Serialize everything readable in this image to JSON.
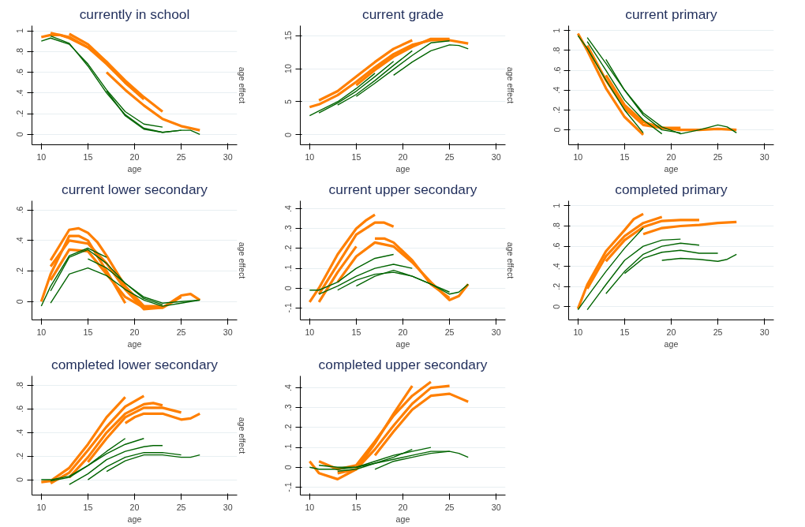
{
  "chart_data": [
    {
      "type": "line",
      "title": "currently in school",
      "xlabel": "age",
      "y2label": "age effect",
      "xlim": [
        9,
        31
      ],
      "xticks": [
        10,
        15,
        20,
        25,
        30
      ],
      "ylim": [
        -0.1,
        1.05
      ],
      "yticks": [
        {
          "value": 0,
          "label": "0"
        },
        {
          "value": 0.2,
          "label": ".2"
        },
        {
          "value": 0.4,
          "label": ".4"
        },
        {
          "value": 0.6,
          "label": ".6"
        },
        {
          "value": 0.8,
          "label": ".8"
        },
        {
          "value": 1,
          "label": "1"
        }
      ],
      "grid": "y",
      "marker": "none",
      "line_style": "solid",
      "series": [
        {
          "color": "#ff7f00",
          "x": [
            10,
            11,
            12,
            13,
            15,
            17,
            19,
            21,
            23
          ],
          "values": [
            0.94,
            0.96,
            0.96,
            0.93,
            0.84,
            0.7,
            0.52,
            0.36,
            0.22
          ]
        },
        {
          "color": "#ff7f00",
          "x": [
            11,
            13,
            15,
            17,
            19,
            21
          ],
          "values": [
            0.98,
            0.94,
            0.84,
            0.68,
            0.5,
            0.34
          ]
        },
        {
          "color": "#ff7f00",
          "x": [
            13,
            15,
            17,
            19,
            21
          ],
          "values": [
            0.97,
            0.87,
            0.7,
            0.5,
            0.35
          ]
        },
        {
          "color": "#ff7f00",
          "x": [
            17,
            19,
            21,
            23,
            25,
            27
          ],
          "values": [
            0.6,
            0.43,
            0.28,
            0.15,
            0.08,
            0.04
          ]
        },
        {
          "color": "#006400",
          "x": [
            10,
            11,
            13,
            15,
            17,
            19,
            21,
            23
          ],
          "values": [
            0.9,
            0.93,
            0.87,
            0.68,
            0.43,
            0.22,
            0.1,
            0.07
          ]
        },
        {
          "color": "#006400",
          "x": [
            11,
            13,
            15,
            17,
            19,
            21,
            23,
            25
          ],
          "values": [
            0.95,
            0.88,
            0.66,
            0.4,
            0.19,
            0.06,
            0.02,
            0.04
          ]
        },
        {
          "color": "#006400",
          "x": [
            17,
            19,
            21,
            23,
            25,
            26,
            27
          ],
          "values": [
            0.42,
            0.18,
            0.05,
            0.02,
            0.04,
            0.04,
            0.0
          ]
        }
      ]
    },
    {
      "type": "line",
      "title": "current grade",
      "xlabel": "age",
      "y2label": "age effect",
      "xlim": [
        9,
        31
      ],
      "xticks": [
        10,
        15,
        20,
        25,
        30
      ],
      "ylim": [
        -1.5,
        16.5
      ],
      "yticks": [
        0,
        5,
        10,
        15
      ],
      "grid": "y",
      "marker": "none",
      "line_style": "solid",
      "series": [
        {
          "color": "#ff7f00",
          "x": [
            10,
            11,
            13,
            15,
            17,
            19,
            21,
            23,
            25,
            27
          ],
          "values": [
            4.2,
            4.6,
            6.0,
            8.0,
            10.2,
            12.2,
            13.6,
            14.3,
            14.3,
            13.8
          ]
        },
        {
          "color": "#ff7f00",
          "x": [
            11,
            13,
            15,
            17,
            19,
            21
          ],
          "values": [
            5.2,
            6.6,
            8.8,
            11.0,
            13.0,
            14.3
          ]
        },
        {
          "color": "#ff7f00",
          "x": [
            15,
            17,
            19,
            21,
            23,
            25
          ],
          "values": [
            7.5,
            9.8,
            11.8,
            13.3,
            14.5,
            14.5
          ]
        },
        {
          "color": "#006400",
          "x": [
            10,
            11,
            13,
            15,
            17
          ],
          "values": [
            2.9,
            3.6,
            5.0,
            7.0,
            9.3
          ]
        },
        {
          "color": "#006400",
          "x": [
            11,
            13,
            15,
            17,
            19
          ],
          "values": [
            3.3,
            4.8,
            6.6,
            8.8,
            11.1
          ]
        },
        {
          "color": "#006400",
          "x": [
            13,
            15,
            17,
            19,
            21
          ],
          "values": [
            4.5,
            6.1,
            8.2,
            10.5,
            12.7
          ]
        },
        {
          "color": "#006400",
          "x": [
            15,
            17,
            19,
            21,
            23,
            25
          ],
          "values": [
            5.8,
            7.8,
            9.9,
            12.0,
            13.9,
            14.2
          ]
        },
        {
          "color": "#006400",
          "x": [
            19,
            21,
            23,
            25,
            26,
            27
          ],
          "values": [
            9.0,
            11.0,
            12.7,
            13.6,
            13.5,
            13.0
          ]
        }
      ]
    },
    {
      "type": "line",
      "title": "current primary",
      "xlabel": "age",
      "xlim": [
        9,
        31
      ],
      "xticks": [
        10,
        15,
        20,
        25,
        30
      ],
      "ylim": [
        -0.15,
        1.05
      ],
      "yticks": [
        {
          "value": 0,
          "label": "0"
        },
        {
          "value": 0.2,
          "label": ".2"
        },
        {
          "value": 0.4,
          "label": ".4"
        },
        {
          "value": 0.6,
          "label": ".6"
        },
        {
          "value": 0.8,
          "label": ".8"
        },
        {
          "value": 1,
          "label": "1"
        }
      ],
      "grid": "y",
      "marker": "none",
      "line_style": "solid",
      "series": [
        {
          "color": "#ff7f00",
          "x": [
            10,
            11,
            13,
            15,
            17
          ],
          "values": [
            0.97,
            0.8,
            0.42,
            0.13,
            -0.05
          ]
        },
        {
          "color": "#ff7f00",
          "x": [
            11,
            13,
            15,
            17,
            19,
            21
          ],
          "values": [
            0.85,
            0.5,
            0.22,
            0.05,
            0.02,
            0.02
          ]
        },
        {
          "color": "#ff7f00",
          "x": [
            13,
            15,
            17,
            19,
            21,
            23,
            25,
            27
          ],
          "values": [
            0.55,
            0.25,
            0.08,
            0.02,
            0.0,
            0.0,
            0.01,
            0.0
          ]
        },
        {
          "color": "#006400",
          "x": [
            10,
            11,
            13,
            15,
            17
          ],
          "values": [
            0.95,
            0.82,
            0.5,
            0.2,
            -0.03
          ]
        },
        {
          "color": "#006400",
          "x": [
            11,
            13,
            15,
            17,
            19
          ],
          "values": [
            0.89,
            0.6,
            0.3,
            0.1,
            -0.04
          ]
        },
        {
          "color": "#006400",
          "x": [
            11,
            13,
            15,
            17,
            19,
            21
          ],
          "values": [
            0.93,
            0.67,
            0.4,
            0.15,
            0.0,
            -0.03
          ]
        },
        {
          "color": "#006400",
          "x": [
            13,
            15,
            17,
            19,
            21,
            23,
            25,
            26,
            27
          ],
          "values": [
            0.71,
            0.4,
            0.17,
            0.03,
            -0.04,
            0.0,
            0.05,
            0.03,
            -0.03
          ]
        }
      ]
    },
    {
      "type": "line",
      "title": "current lower secondary",
      "xlabel": "age",
      "y2label": "age effect",
      "xlim": [
        9,
        31
      ],
      "xticks": [
        10,
        15,
        20,
        25,
        30
      ],
      "ylim": [
        -0.12,
        0.66
      ],
      "yticks": [
        {
          "value": 0,
          "label": "0"
        },
        {
          "value": 0.2,
          "label": ".2"
        },
        {
          "value": 0.4,
          "label": ".4"
        },
        {
          "value": 0.6,
          "label": ".6"
        }
      ],
      "grid": "y",
      "marker": "none",
      "line_style": "solid",
      "series": [
        {
          "color": "#ff7f00",
          "x": [
            10,
            11,
            13,
            14,
            15,
            17,
            19
          ],
          "values": [
            0.0,
            0.18,
            0.43,
            0.43,
            0.4,
            0.2,
            -0.01
          ]
        },
        {
          "color": "#ff7f00",
          "x": [
            11,
            13,
            14,
            15,
            16,
            17,
            19,
            21,
            23
          ],
          "values": [
            0.27,
            0.47,
            0.48,
            0.45,
            0.39,
            0.3,
            0.1,
            -0.03,
            -0.03
          ]
        },
        {
          "color": "#ff7f00",
          "x": [
            11,
            13,
            15,
            17,
            19,
            21,
            23,
            25,
            26,
            27
          ],
          "values": [
            0.23,
            0.4,
            0.38,
            0.25,
            0.08,
            -0.05,
            -0.04,
            0.04,
            0.05,
            0.01
          ]
        },
        {
          "color": "#ff7f00",
          "x": [
            11,
            13,
            15,
            17,
            19,
            21,
            23,
            25
          ],
          "values": [
            0.14,
            0.34,
            0.33,
            0.18,
            0.03,
            -0.04,
            -0.04,
            0.03
          ]
        },
        {
          "color": "#006400",
          "x": [
            10,
            11,
            13,
            15,
            17
          ],
          "values": [
            -0.03,
            0.1,
            0.3,
            0.35,
            0.29
          ]
        },
        {
          "color": "#006400",
          "x": [
            11,
            13,
            15,
            17,
            19,
            21,
            23
          ],
          "values": [
            0.07,
            0.29,
            0.34,
            0.25,
            0.12,
            0.02,
            -0.02
          ]
        },
        {
          "color": "#006400",
          "x": [
            11,
            13,
            15,
            17,
            19,
            21,
            23,
            25,
            27
          ],
          "values": [
            -0.01,
            0.18,
            0.22,
            0.17,
            0.08,
            0.01,
            -0.03,
            -0.01,
            0.01
          ]
        },
        {
          "color": "#006400",
          "x": [
            15,
            17,
            19,
            21,
            23,
            25,
            27
          ],
          "values": [
            0.28,
            0.22,
            0.12,
            0.03,
            -0.01,
            0.0,
            0.01
          ]
        }
      ]
    },
    {
      "type": "line",
      "title": "current upper secondary",
      "xlabel": "age",
      "y2label": "age effect",
      "xlim": [
        9,
        31
      ],
      "xticks": [
        10,
        15,
        20,
        25,
        30
      ],
      "ylim": [
        -0.16,
        0.44
      ],
      "yticks": [
        {
          "value": -0.1,
          "label": "-.1"
        },
        {
          "value": 0,
          "label": "0"
        },
        {
          "value": 0.1,
          "label": ".1"
        },
        {
          "value": 0.2,
          "label": ".2"
        },
        {
          "value": 0.3,
          "label": ".3"
        },
        {
          "value": 0.4,
          "label": ".4"
        }
      ],
      "grid": "y",
      "marker": "none",
      "line_style": "solid",
      "series": [
        {
          "color": "#ff7f00",
          "x": [
            10,
            11,
            13,
            15,
            16,
            17
          ],
          "values": [
            -0.07,
            0.0,
            0.17,
            0.3,
            0.34,
            0.37
          ]
        },
        {
          "color": "#ff7f00",
          "x": [
            11,
            13,
            15,
            17,
            18,
            19
          ],
          "values": [
            -0.03,
            0.12,
            0.27,
            0.33,
            0.33,
            0.31
          ]
        },
        {
          "color": "#ff7f00",
          "x": [
            11,
            13,
            15
          ],
          "values": [
            -0.07,
            0.08,
            0.21
          ]
        },
        {
          "color": "#ff7f00",
          "x": [
            13,
            15,
            17,
            19,
            21,
            23,
            25,
            26,
            27
          ],
          "values": [
            0.03,
            0.16,
            0.23,
            0.21,
            0.13,
            0.03,
            -0.06,
            -0.04,
            0.02
          ]
        },
        {
          "color": "#ff7f00",
          "x": [
            17,
            18,
            19,
            21,
            23,
            25
          ],
          "values": [
            0.25,
            0.25,
            0.23,
            0.14,
            0.02,
            -0.05
          ]
        },
        {
          "color": "#006400",
          "x": [
            10,
            11,
            13,
            15,
            17,
            19
          ],
          "values": [
            -0.01,
            -0.01,
            0.03,
            0.1,
            0.15,
            0.17
          ]
        },
        {
          "color": "#006400",
          "x": [
            11,
            13,
            15,
            17,
            19,
            21
          ],
          "values": [
            -0.03,
            0.01,
            0.06,
            0.1,
            0.12,
            0.1
          ]
        },
        {
          "color": "#006400",
          "x": [
            13,
            15,
            17,
            19,
            21,
            23,
            25,
            26,
            27
          ],
          "values": [
            -0.01,
            0.04,
            0.07,
            0.08,
            0.06,
            0.02,
            -0.03,
            -0.02,
            0.02
          ]
        },
        {
          "color": "#006400",
          "x": [
            15,
            17,
            19,
            21,
            23,
            25
          ],
          "values": [
            0.01,
            0.06,
            0.09,
            0.06,
            0.02,
            -0.02
          ]
        }
      ]
    },
    {
      "type": "line",
      "title": "completed primary",
      "xlabel": "age",
      "xlim": [
        9,
        31
      ],
      "xticks": [
        10,
        15,
        20,
        25,
        30
      ],
      "ylim": [
        -0.13,
        1.05
      ],
      "yticks": [
        {
          "value": 0,
          "label": "0"
        },
        {
          "value": 0.2,
          "label": ".2"
        },
        {
          "value": 0.4,
          "label": ".4"
        },
        {
          "value": 0.6,
          "label": ".6"
        },
        {
          "value": 0.8,
          "label": ".8"
        },
        {
          "value": 1,
          "label": "1"
        }
      ],
      "grid": "y",
      "marker": "none",
      "line_style": "solid",
      "series": [
        {
          "color": "#ff7f00",
          "x": [
            10,
            11,
            13,
            15,
            16,
            17
          ],
          "values": [
            -0.02,
            0.22,
            0.55,
            0.76,
            0.87,
            0.92
          ]
        },
        {
          "color": "#ff7f00",
          "x": [
            11,
            13,
            15,
            17,
            19
          ],
          "values": [
            0.18,
            0.5,
            0.7,
            0.83,
            0.89
          ]
        },
        {
          "color": "#ff7f00",
          "x": [
            13,
            15,
            17,
            19,
            21,
            23
          ],
          "values": [
            0.45,
            0.66,
            0.79,
            0.85,
            0.86,
            0.86
          ]
        },
        {
          "color": "#ff7f00",
          "x": [
            17,
            19,
            21,
            23,
            25,
            27
          ],
          "values": [
            0.72,
            0.78,
            0.8,
            0.81,
            0.83,
            0.84
          ]
        },
        {
          "color": "#006400",
          "x": [
            10,
            11,
            13,
            15,
            17
          ],
          "values": [
            -0.03,
            0.1,
            0.35,
            0.58,
            0.78
          ]
        },
        {
          "color": "#006400",
          "x": [
            11,
            13,
            15,
            17,
            19,
            21
          ],
          "values": [
            -0.03,
            0.22,
            0.46,
            0.6,
            0.66,
            0.67
          ]
        },
        {
          "color": "#006400",
          "x": [
            13,
            15,
            17,
            19,
            21,
            23
          ],
          "values": [
            0.13,
            0.35,
            0.52,
            0.6,
            0.63,
            0.61
          ]
        },
        {
          "color": "#006400",
          "x": [
            15,
            17,
            19,
            21,
            23,
            25
          ],
          "values": [
            0.33,
            0.48,
            0.54,
            0.56,
            0.53,
            0.53
          ]
        },
        {
          "color": "#006400",
          "x": [
            19,
            21,
            23,
            25,
            26,
            27
          ],
          "values": [
            0.46,
            0.48,
            0.47,
            0.45,
            0.47,
            0.52
          ]
        }
      ]
    },
    {
      "type": "line",
      "title": "completed lower secondary",
      "xlabel": "age",
      "y2label": "age effect",
      "xlim": [
        9,
        31
      ],
      "xticks": [
        10,
        15,
        20,
        25,
        30
      ],
      "ylim": [
        -0.13,
        0.88
      ],
      "yticks": [
        {
          "value": 0,
          "label": "0"
        },
        {
          "value": 0.2,
          "label": ".2"
        },
        {
          "value": 0.4,
          "label": ".4"
        },
        {
          "value": 0.6,
          "label": ".6"
        },
        {
          "value": 0.8,
          "label": ".8"
        }
      ],
      "grid": "y",
      "marker": "none",
      "line_style": "solid",
      "series": [
        {
          "color": "#ff7f00",
          "x": [
            10,
            11,
            13,
            15,
            17,
            19
          ],
          "values": [
            -0.02,
            -0.01,
            0.1,
            0.3,
            0.53,
            0.7
          ]
        },
        {
          "color": "#ff7f00",
          "x": [
            11,
            13,
            15,
            17,
            19,
            21
          ],
          "values": [
            -0.03,
            0.06,
            0.25,
            0.45,
            0.62,
            0.71
          ]
        },
        {
          "color": "#ff7f00",
          "x": [
            13,
            15,
            17,
            19,
            21,
            22,
            23
          ],
          "values": [
            0.02,
            0.19,
            0.4,
            0.56,
            0.64,
            0.65,
            0.63
          ]
        },
        {
          "color": "#ff7f00",
          "x": [
            15,
            17,
            19,
            21,
            23,
            25
          ],
          "values": [
            0.15,
            0.35,
            0.53,
            0.61,
            0.61,
            0.57
          ]
        },
        {
          "color": "#ff7f00",
          "x": [
            19,
            20,
            21,
            23,
            25,
            26,
            27
          ],
          "values": [
            0.48,
            0.53,
            0.56,
            0.56,
            0.51,
            0.52,
            0.56
          ]
        },
        {
          "color": "#006400",
          "x": [
            10,
            11,
            13,
            15,
            17,
            19
          ],
          "values": [
            0.0,
            0.0,
            0.03,
            0.12,
            0.24,
            0.35
          ]
        },
        {
          "color": "#006400",
          "x": [
            11,
            13,
            15,
            17,
            19,
            21
          ],
          "values": [
            -0.01,
            0.02,
            0.12,
            0.22,
            0.3,
            0.35
          ]
        },
        {
          "color": "#006400",
          "x": [
            13,
            15,
            17,
            19,
            21,
            22,
            23
          ],
          "values": [
            -0.04,
            0.05,
            0.17,
            0.24,
            0.28,
            0.29,
            0.29
          ]
        },
        {
          "color": "#006400",
          "x": [
            15,
            17,
            19,
            21,
            23,
            25
          ],
          "values": [
            0.0,
            0.11,
            0.19,
            0.23,
            0.23,
            0.21
          ]
        },
        {
          "color": "#006400",
          "x": [
            17,
            19,
            21,
            23,
            25,
            26,
            27
          ],
          "values": [
            0.07,
            0.16,
            0.21,
            0.21,
            0.19,
            0.19,
            0.21
          ]
        }
      ]
    },
    {
      "type": "line",
      "title": "completed upper secondary",
      "xlabel": "age",
      "xlim": [
        9,
        31
      ],
      "xticks": [
        10,
        15,
        20,
        25,
        30
      ],
      "ylim": [
        -0.14,
        0.46
      ],
      "yticks": [
        {
          "value": -0.1,
          "label": "-.1"
        },
        {
          "value": 0,
          "label": "0"
        },
        {
          "value": 0.1,
          "label": ".1"
        },
        {
          "value": 0.2,
          "label": ".2"
        },
        {
          "value": 0.3,
          "label": ".3"
        },
        {
          "value": 0.4,
          "label": ".4"
        }
      ],
      "grid": "y",
      "marker": "none",
      "line_style": "solid",
      "series": [
        {
          "color": "#ff7f00",
          "x": [
            10,
            11,
            13,
            15,
            17,
            19,
            21
          ],
          "values": [
            0.03,
            -0.03,
            -0.06,
            -0.01,
            0.12,
            0.27,
            0.41
          ]
        },
        {
          "color": "#ff7f00",
          "x": [
            11,
            13,
            15,
            17,
            19,
            21,
            23
          ],
          "values": [
            0.03,
            -0.01,
            0.01,
            0.13,
            0.26,
            0.36,
            0.43
          ]
        },
        {
          "color": "#ff7f00",
          "x": [
            13,
            15,
            17,
            19,
            21,
            23,
            25
          ],
          "values": [
            -0.03,
            -0.01,
            0.09,
            0.21,
            0.32,
            0.4,
            0.41
          ]
        },
        {
          "color": "#ff7f00",
          "x": [
            17,
            19,
            21,
            23,
            25,
            27
          ],
          "values": [
            0.06,
            0.18,
            0.29,
            0.36,
            0.37,
            0.33
          ]
        },
        {
          "color": "#006400",
          "x": [
            10,
            11,
            13,
            15,
            17,
            19,
            21
          ],
          "values": [
            0.0,
            -0.01,
            -0.01,
            0.0,
            0.02,
            0.05,
            0.09
          ]
        },
        {
          "color": "#006400",
          "x": [
            11,
            13,
            15,
            17,
            19,
            21,
            23
          ],
          "values": [
            0.01,
            0.0,
            0.0,
            0.03,
            0.06,
            0.08,
            0.1
          ]
        },
        {
          "color": "#006400",
          "x": [
            13,
            15,
            17,
            19,
            21,
            23,
            25
          ],
          "values": [
            -0.02,
            -0.01,
            0.02,
            0.04,
            0.06,
            0.08,
            0.08
          ]
        },
        {
          "color": "#006400",
          "x": [
            17,
            19,
            21,
            23,
            25,
            26,
            27
          ],
          "values": [
            -0.01,
            0.03,
            0.05,
            0.07,
            0.08,
            0.07,
            0.05
          ]
        }
      ]
    }
  ]
}
